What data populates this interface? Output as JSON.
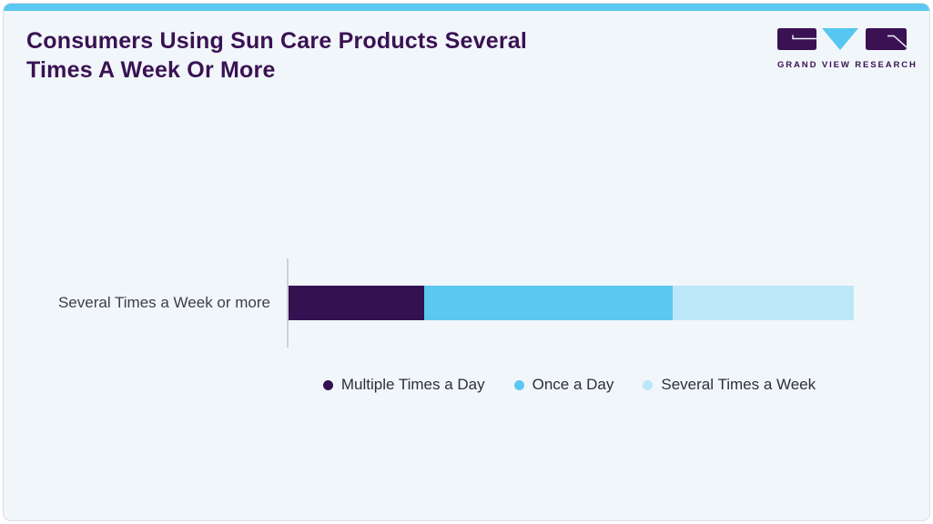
{
  "header": {
    "title_line1": "Consumers Using Sun Care Products Several",
    "title_line2": "Times A Week Or More",
    "logo_text": "GRAND VIEW RESEARCH"
  },
  "colors": {
    "accent_bar": "#5ac8f0",
    "title": "#3a1253",
    "card_bg": "#f1f6fa",
    "card_border": "#d9dfe6",
    "axis_line": "#cdd0d4",
    "category_label": "#3d3e46",
    "legend_text": "#2e2f38",
    "brand_purple": "#341151",
    "brand_blue": "#5bc8f0",
    "brand_light_blue": "#bce7f8"
  },
  "chart_data": {
    "type": "bar",
    "orientation": "horizontal",
    "stacked": true,
    "title": "Consumers Using Sun Care Products Several Times A Week Or More",
    "categories": [
      "Several Times a Week or more"
    ],
    "series": [
      {
        "name": "Multiple Times a Day",
        "values": [
          24
        ],
        "color": "#341151"
      },
      {
        "name": "Once a Day",
        "values": [
          44
        ],
        "color": "#5bc8f0"
      },
      {
        "name": "Several Times a Week",
        "values": [
          32
        ],
        "color": "#bce7f8"
      }
    ],
    "xlabel": "",
    "ylabel": "",
    "unit": "percent-estimated-from-bar-lengths",
    "xlim": [
      0,
      100
    ],
    "grid": false,
    "legend_position": "bottom",
    "data_labels": false
  }
}
